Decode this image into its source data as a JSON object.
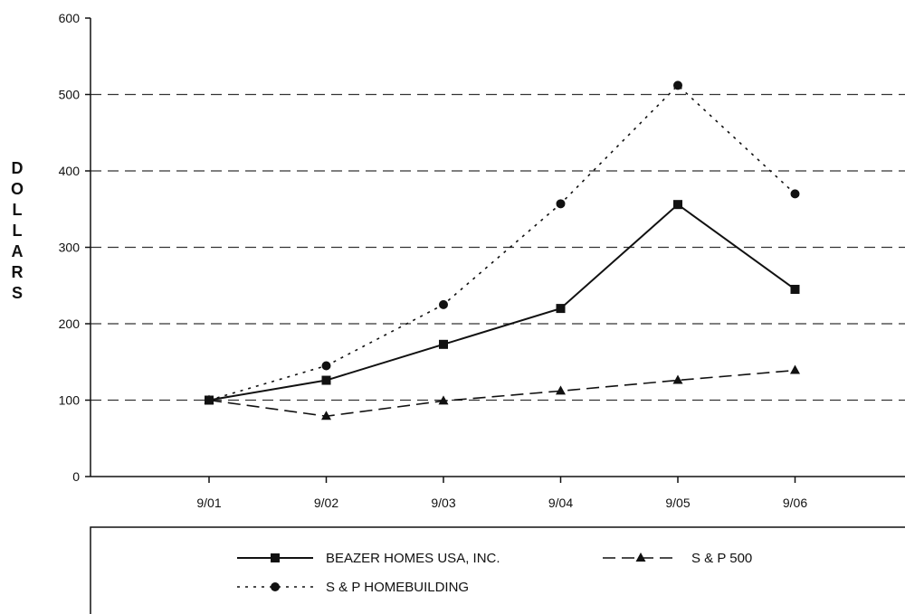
{
  "chart_data": {
    "type": "line",
    "ylabel": "DOLLARS",
    "xlabel": "",
    "categories": [
      "9/01",
      "9/02",
      "9/03",
      "9/04",
      "9/05",
      "9/06"
    ],
    "ylim": [
      0,
      600
    ],
    "yticks": [
      0,
      100,
      200,
      300,
      400,
      500,
      600
    ],
    "grid": "horizontal-dashed",
    "legend_position": "bottom",
    "series": [
      {
        "name": "BEAZER HOMES USA, INC.",
        "line": "solid",
        "marker": "square",
        "values": [
          100,
          126,
          173,
          220,
          356,
          245
        ]
      },
      {
        "name": "S & P 500",
        "line": "dashed",
        "marker": "triangle",
        "values": [
          100,
          79,
          99,
          112,
          126,
          139
        ]
      },
      {
        "name": "S & P HOMEBUILDING",
        "line": "dotted",
        "marker": "circle",
        "values": [
          100,
          145,
          225,
          357,
          512,
          370
        ]
      }
    ]
  }
}
